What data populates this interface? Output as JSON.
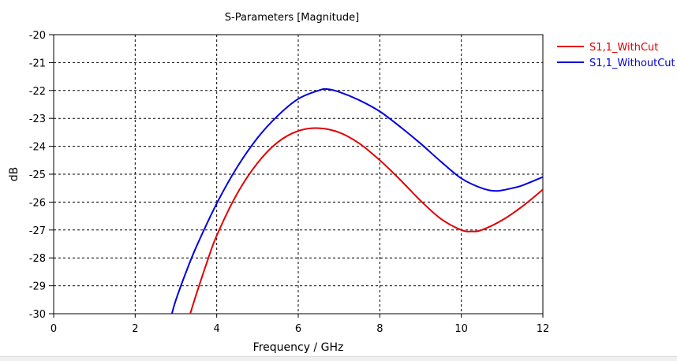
{
  "chart_data": {
    "type": "line",
    "title": "S-Parameters [Magnitude]",
    "xlabel": "Frequency / GHz",
    "ylabel": "dB",
    "xlim": [
      0,
      12
    ],
    "ylim": [
      -30,
      -20
    ],
    "xticks": [
      0,
      2,
      4,
      6,
      8,
      10,
      12
    ],
    "yticks": [
      -30,
      -29,
      -28,
      -27,
      -26,
      -25,
      -24,
      -23,
      -22,
      -21,
      -20
    ],
    "grid": true,
    "legend_position": "top-right",
    "series": [
      {
        "name": "S1,1_WithCut",
        "color": "#e00000",
        "x": [
          3.35,
          3.5,
          3.75,
          4.0,
          4.5,
          5.0,
          5.5,
          6.0,
          6.5,
          7.0,
          7.5,
          8.0,
          8.5,
          9.0,
          9.5,
          10.0,
          10.25,
          10.5,
          11.0,
          11.5,
          12.0
        ],
        "y": [
          -30.0,
          -29.3,
          -28.2,
          -27.2,
          -25.7,
          -24.6,
          -23.85,
          -23.45,
          -23.35,
          -23.5,
          -23.9,
          -24.5,
          -25.2,
          -25.95,
          -26.6,
          -27.0,
          -27.05,
          -27.0,
          -26.65,
          -26.15,
          -25.55
        ]
      },
      {
        "name": "S1,1_WithoutCut",
        "color": "#0000e0",
        "x": [
          2.9,
          3.0,
          3.25,
          3.5,
          4.0,
          4.5,
          5.0,
          5.5,
          6.0,
          6.5,
          6.7,
          7.0,
          7.5,
          8.0,
          8.5,
          9.0,
          9.5,
          10.0,
          10.5,
          10.85,
          11.25,
          11.5,
          12.0
        ],
        "y": [
          -30.0,
          -29.5,
          -28.5,
          -27.6,
          -26.05,
          -24.75,
          -23.7,
          -22.9,
          -22.3,
          -22.0,
          -21.95,
          -22.05,
          -22.35,
          -22.75,
          -23.3,
          -23.9,
          -24.55,
          -25.15,
          -25.5,
          -25.6,
          -25.5,
          -25.4,
          -25.1
        ]
      }
    ]
  }
}
